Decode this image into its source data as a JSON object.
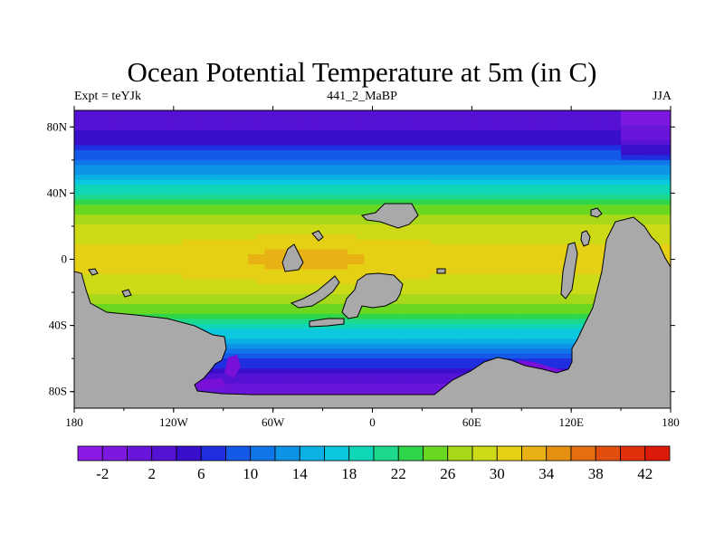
{
  "chart_data": {
    "type": "heatmap",
    "title": "Ocean Potential Temperature at 5m (in C)",
    "subtitle_left": "Expt = teYJk",
    "subtitle_center": "441_2_MaBP",
    "subtitle_right": "JJA",
    "variable": "Ocean Potential Temperature",
    "units": "C",
    "xlim": [
      -180,
      180
    ],
    "ylim": [
      -90,
      90
    ],
    "x_ticks": [
      {
        "value": -180,
        "label": "180"
      },
      {
        "value": -120,
        "label": "120W"
      },
      {
        "value": -60,
        "label": "60W"
      },
      {
        "value": 0,
        "label": "0"
      },
      {
        "value": 60,
        "label": "60E"
      },
      {
        "value": 120,
        "label": "120E"
      },
      {
        "value": 180,
        "label": "180"
      }
    ],
    "y_ticks": [
      {
        "value": 80,
        "label": "80N"
      },
      {
        "value": 40,
        "label": "40N"
      },
      {
        "value": 0,
        "label": "0"
      },
      {
        "value": -40,
        "label": "40S"
      },
      {
        "value": -80,
        "label": "80S"
      }
    ],
    "zonal_profile": {
      "lat": [
        90,
        80,
        70,
        60,
        50,
        40,
        30,
        20,
        10,
        0,
        -10,
        -20,
        -30,
        -40,
        -50,
        -60,
        -70,
        -80,
        -90
      ],
      "temp": [
        2,
        3,
        6,
        10,
        15,
        20,
        25,
        28,
        30,
        31,
        30,
        28,
        25,
        20,
        14,
        8,
        4,
        0,
        -2
      ]
    },
    "colorbar": {
      "min": -4,
      "max": 44,
      "step": 2,
      "labels": [
        "-2",
        "2",
        "6",
        "10",
        "14",
        "18",
        "22",
        "26",
        "30",
        "34",
        "38",
        "42"
      ],
      "colors": [
        "#8C1AE6",
        "#7D18E0",
        "#6A15DA",
        "#5511D4",
        "#3A0FCC",
        "#1F2FE0",
        "#1559E8",
        "#1076EA",
        "#0D94E6",
        "#0BB0E4",
        "#0CC8DE",
        "#10D6B8",
        "#1CD98C",
        "#30D64A",
        "#6AD820",
        "#A8D81A",
        "#CCDA18",
        "#E6D016",
        "#E8B214",
        "#E69012",
        "#E46E10",
        "#E24E0E",
        "#E0300C",
        "#DC1A0A"
      ]
    },
    "land_color": "#A9A9A9"
  }
}
